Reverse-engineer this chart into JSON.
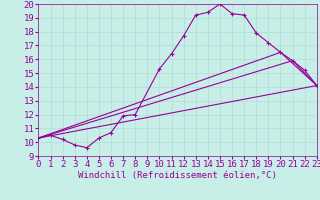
{
  "xlabel": "Windchill (Refroidissement éolien,°C)",
  "bg_color": "#c8eee8",
  "line_color": "#990099",
  "grid_color": "#b0ddd8",
  "xlim": [
    0,
    23
  ],
  "ylim": [
    9,
    20
  ],
  "xticks": [
    0,
    1,
    2,
    3,
    4,
    5,
    6,
    7,
    8,
    9,
    10,
    11,
    12,
    13,
    14,
    15,
    16,
    17,
    18,
    19,
    20,
    21,
    22,
    23
  ],
  "yticks": [
    9,
    10,
    11,
    12,
    13,
    14,
    15,
    16,
    17,
    18,
    19,
    20
  ],
  "series": [
    {
      "x": [
        0,
        1,
        2,
        3,
        4,
        5,
        6,
        7,
        8,
        10,
        11,
        12,
        13,
        14,
        15,
        16,
        17,
        18,
        19,
        20,
        21,
        22,
        23
      ],
      "y": [
        10.3,
        10.5,
        10.2,
        9.8,
        9.6,
        10.3,
        10.7,
        11.9,
        12.0,
        15.3,
        16.4,
        17.7,
        19.2,
        19.4,
        20.0,
        19.3,
        19.2,
        17.9,
        17.2,
        16.5,
        15.9,
        15.2,
        14.1
      ],
      "markers": true
    },
    {
      "x": [
        0,
        23
      ],
      "y": [
        10.3,
        14.1
      ],
      "markers": false
    },
    {
      "x": [
        0,
        20,
        23
      ],
      "y": [
        10.3,
        16.5,
        14.1
      ],
      "markers": false
    },
    {
      "x": [
        0,
        21,
        23
      ],
      "y": [
        10.3,
        15.9,
        14.1
      ],
      "markers": false
    }
  ],
  "font_size": 6.5,
  "marker": "+"
}
